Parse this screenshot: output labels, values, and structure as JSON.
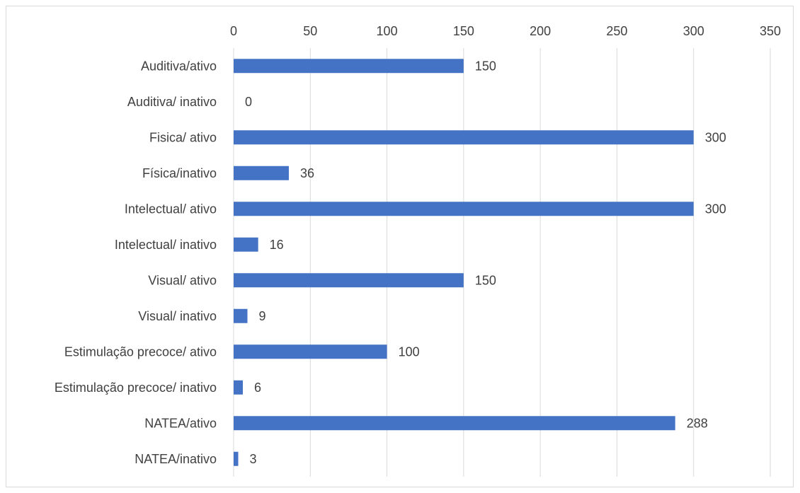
{
  "chart_data": {
    "type": "bar",
    "orientation": "horizontal",
    "title": "",
    "xlabel": "",
    "ylabel": "",
    "xlim": [
      0,
      350
    ],
    "x_ticks": [
      0,
      50,
      100,
      150,
      200,
      250,
      300,
      350
    ],
    "x_axis_position": "top",
    "grid": true,
    "legend": "none",
    "bar_color": "#4472C4",
    "gridline_color": "#d9d9d9",
    "text_color": "#404040",
    "categories": [
      "Auditiva/ativo",
      "Auditiva/ inativo",
      "Fisica/ ativo",
      "Física/inativo",
      "Intelectual/ ativo",
      "Intelectual/ inativo",
      "Visual/ ativo",
      "Visual/ inativo",
      "Estimulação precoce/ ativo",
      "Estimulação precoce/ inativo",
      "NATEA/ativo",
      "NATEA/inativo"
    ],
    "values": [
      150,
      0,
      300,
      36,
      300,
      16,
      150,
      9,
      100,
      6,
      288,
      3
    ],
    "data_labels": [
      "150",
      "0",
      "300",
      "36",
      "300",
      "16",
      "150",
      "9",
      "100",
      "6",
      "288",
      "3"
    ]
  }
}
